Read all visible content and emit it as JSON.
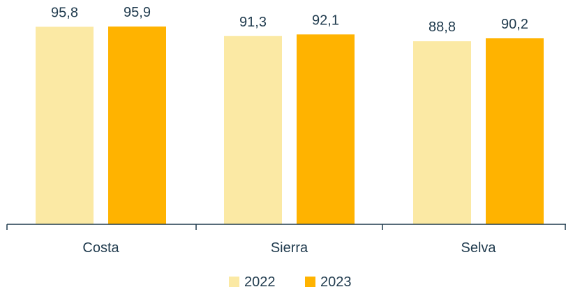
{
  "chart_data": {
    "type": "bar",
    "categories": [
      "Costa",
      "Sierra",
      "Selva"
    ],
    "series": [
      {
        "name": "2022",
        "values": [
          95.8,
          91.3,
          88.8
        ],
        "labels": [
          "95,8",
          "91,3",
          "88,8"
        ],
        "color": "#FBE9A4"
      },
      {
        "name": "2023",
        "values": [
          95.9,
          92.1,
          90.2
        ],
        "labels": [
          "95,9",
          "92,1",
          "90,2"
        ],
        "color": "#FFB300"
      }
    ],
    "ylim": [
      0,
      100
    ],
    "grid": false,
    "legend": "bottom-center"
  }
}
